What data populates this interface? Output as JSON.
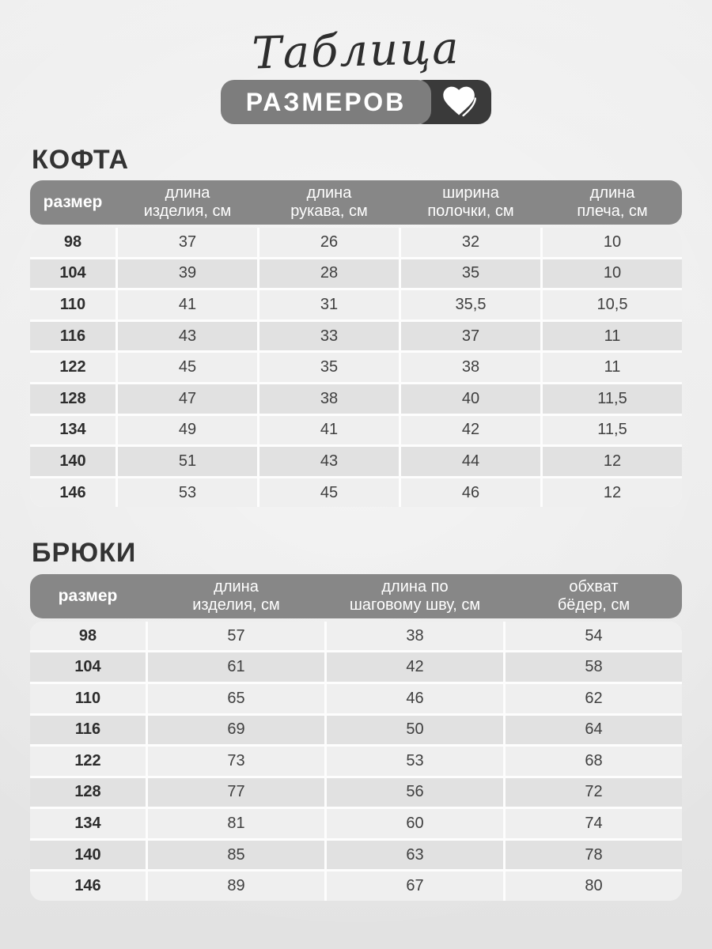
{
  "header": {
    "script_title": "Таблица",
    "badge_label": "РАЗМЕРОВ",
    "heart_icon": "heart-icon"
  },
  "colors": {
    "badge_gray": "#7d7d7d",
    "badge_dark": "#3a3a3a",
    "table_header_bg": "#878787",
    "row_light": "#efefef",
    "row_dark": "#e1e1e1",
    "text_dark": "#333333",
    "header_text": "#ffffff"
  },
  "tables": [
    {
      "title": "КОФТА",
      "headers": [
        "размер",
        "длина\nизделия, см",
        "длина\nрукава, см",
        "ширина\nполочки, см",
        "длина\nплеча, см"
      ],
      "rows": [
        [
          "98",
          "37",
          "26",
          "32",
          "10"
        ],
        [
          "104",
          "39",
          "28",
          "35",
          "10"
        ],
        [
          "110",
          "41",
          "31",
          "35,5",
          "10,5"
        ],
        [
          "116",
          "43",
          "33",
          "37",
          "11"
        ],
        [
          "122",
          "45",
          "35",
          "38",
          "11"
        ],
        [
          "128",
          "47",
          "38",
          "40",
          "11,5"
        ],
        [
          "134",
          "49",
          "41",
          "42",
          "11,5"
        ],
        [
          "140",
          "51",
          "43",
          "44",
          "12"
        ],
        [
          "146",
          "53",
          "45",
          "46",
          "12"
        ]
      ]
    },
    {
      "title": "БРЮКИ",
      "headers": [
        "размер",
        "длина\nизделия, см",
        "длина по\nшаговому шву, см",
        "обхват\nбёдер, см"
      ],
      "rows": [
        [
          "98",
          "57",
          "38",
          "54"
        ],
        [
          "104",
          "61",
          "42",
          "58"
        ],
        [
          "110",
          "65",
          "46",
          "62"
        ],
        [
          "116",
          "69",
          "50",
          "64"
        ],
        [
          "122",
          "73",
          "53",
          "68"
        ],
        [
          "128",
          "77",
          "56",
          "72"
        ],
        [
          "134",
          "81",
          "60",
          "74"
        ],
        [
          "140",
          "85",
          "63",
          "78"
        ],
        [
          "146",
          "89",
          "67",
          "80"
        ]
      ]
    }
  ],
  "chart_data": [
    {
      "type": "table",
      "title": "КОФТА",
      "columns": [
        "размер",
        "длина изделия, см",
        "длина рукава, см",
        "ширина полочки, см",
        "длина плеча, см"
      ],
      "rows": [
        [
          98,
          37,
          26,
          32,
          10
        ],
        [
          104,
          39,
          28,
          35,
          10
        ],
        [
          110,
          41,
          31,
          35.5,
          10.5
        ],
        [
          116,
          43,
          33,
          37,
          11
        ],
        [
          122,
          45,
          35,
          38,
          11
        ],
        [
          128,
          47,
          38,
          40,
          11.5
        ],
        [
          134,
          49,
          41,
          42,
          11.5
        ],
        [
          140,
          51,
          43,
          44,
          12
        ],
        [
          146,
          53,
          45,
          46,
          12
        ]
      ]
    },
    {
      "type": "table",
      "title": "БРЮКИ",
      "columns": [
        "размер",
        "длина изделия, см",
        "длина по шаговому шву, см",
        "обхват бёдер, см"
      ],
      "rows": [
        [
          98,
          57,
          38,
          54
        ],
        [
          104,
          61,
          42,
          58
        ],
        [
          110,
          65,
          46,
          62
        ],
        [
          116,
          69,
          50,
          64
        ],
        [
          122,
          73,
          53,
          68
        ],
        [
          128,
          77,
          56,
          72
        ],
        [
          134,
          81,
          60,
          74
        ],
        [
          140,
          85,
          63,
          78
        ],
        [
          146,
          89,
          67,
          80
        ]
      ]
    }
  ]
}
